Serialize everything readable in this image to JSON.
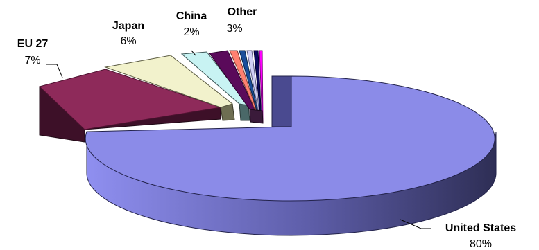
{
  "chart_data": {
    "type": "pie",
    "style": "3d-exploded",
    "title": "",
    "slices": [
      {
        "name": "United States",
        "percent_label": "80%",
        "value": 80,
        "color": "#8b8be8"
      },
      {
        "name": "EU 27",
        "percent_label": "7%",
        "value": 7,
        "color": "#8e2a5a"
      },
      {
        "name": "Japan",
        "percent_label": "6%",
        "value": 6,
        "color": "#f2f2cc"
      },
      {
        "name": "China",
        "percent_label": "2%",
        "value": 2,
        "color": "#c8f3f3"
      },
      {
        "name": "Other",
        "percent_label": "3%",
        "value": 3,
        "color": "#5a0a5a"
      }
    ],
    "other_breakdown_colors": [
      "#5a0a5a",
      "#ff8070",
      "#1a4e9a",
      "#cfcff5",
      "#0a0a60",
      "#ff00ff"
    ]
  }
}
